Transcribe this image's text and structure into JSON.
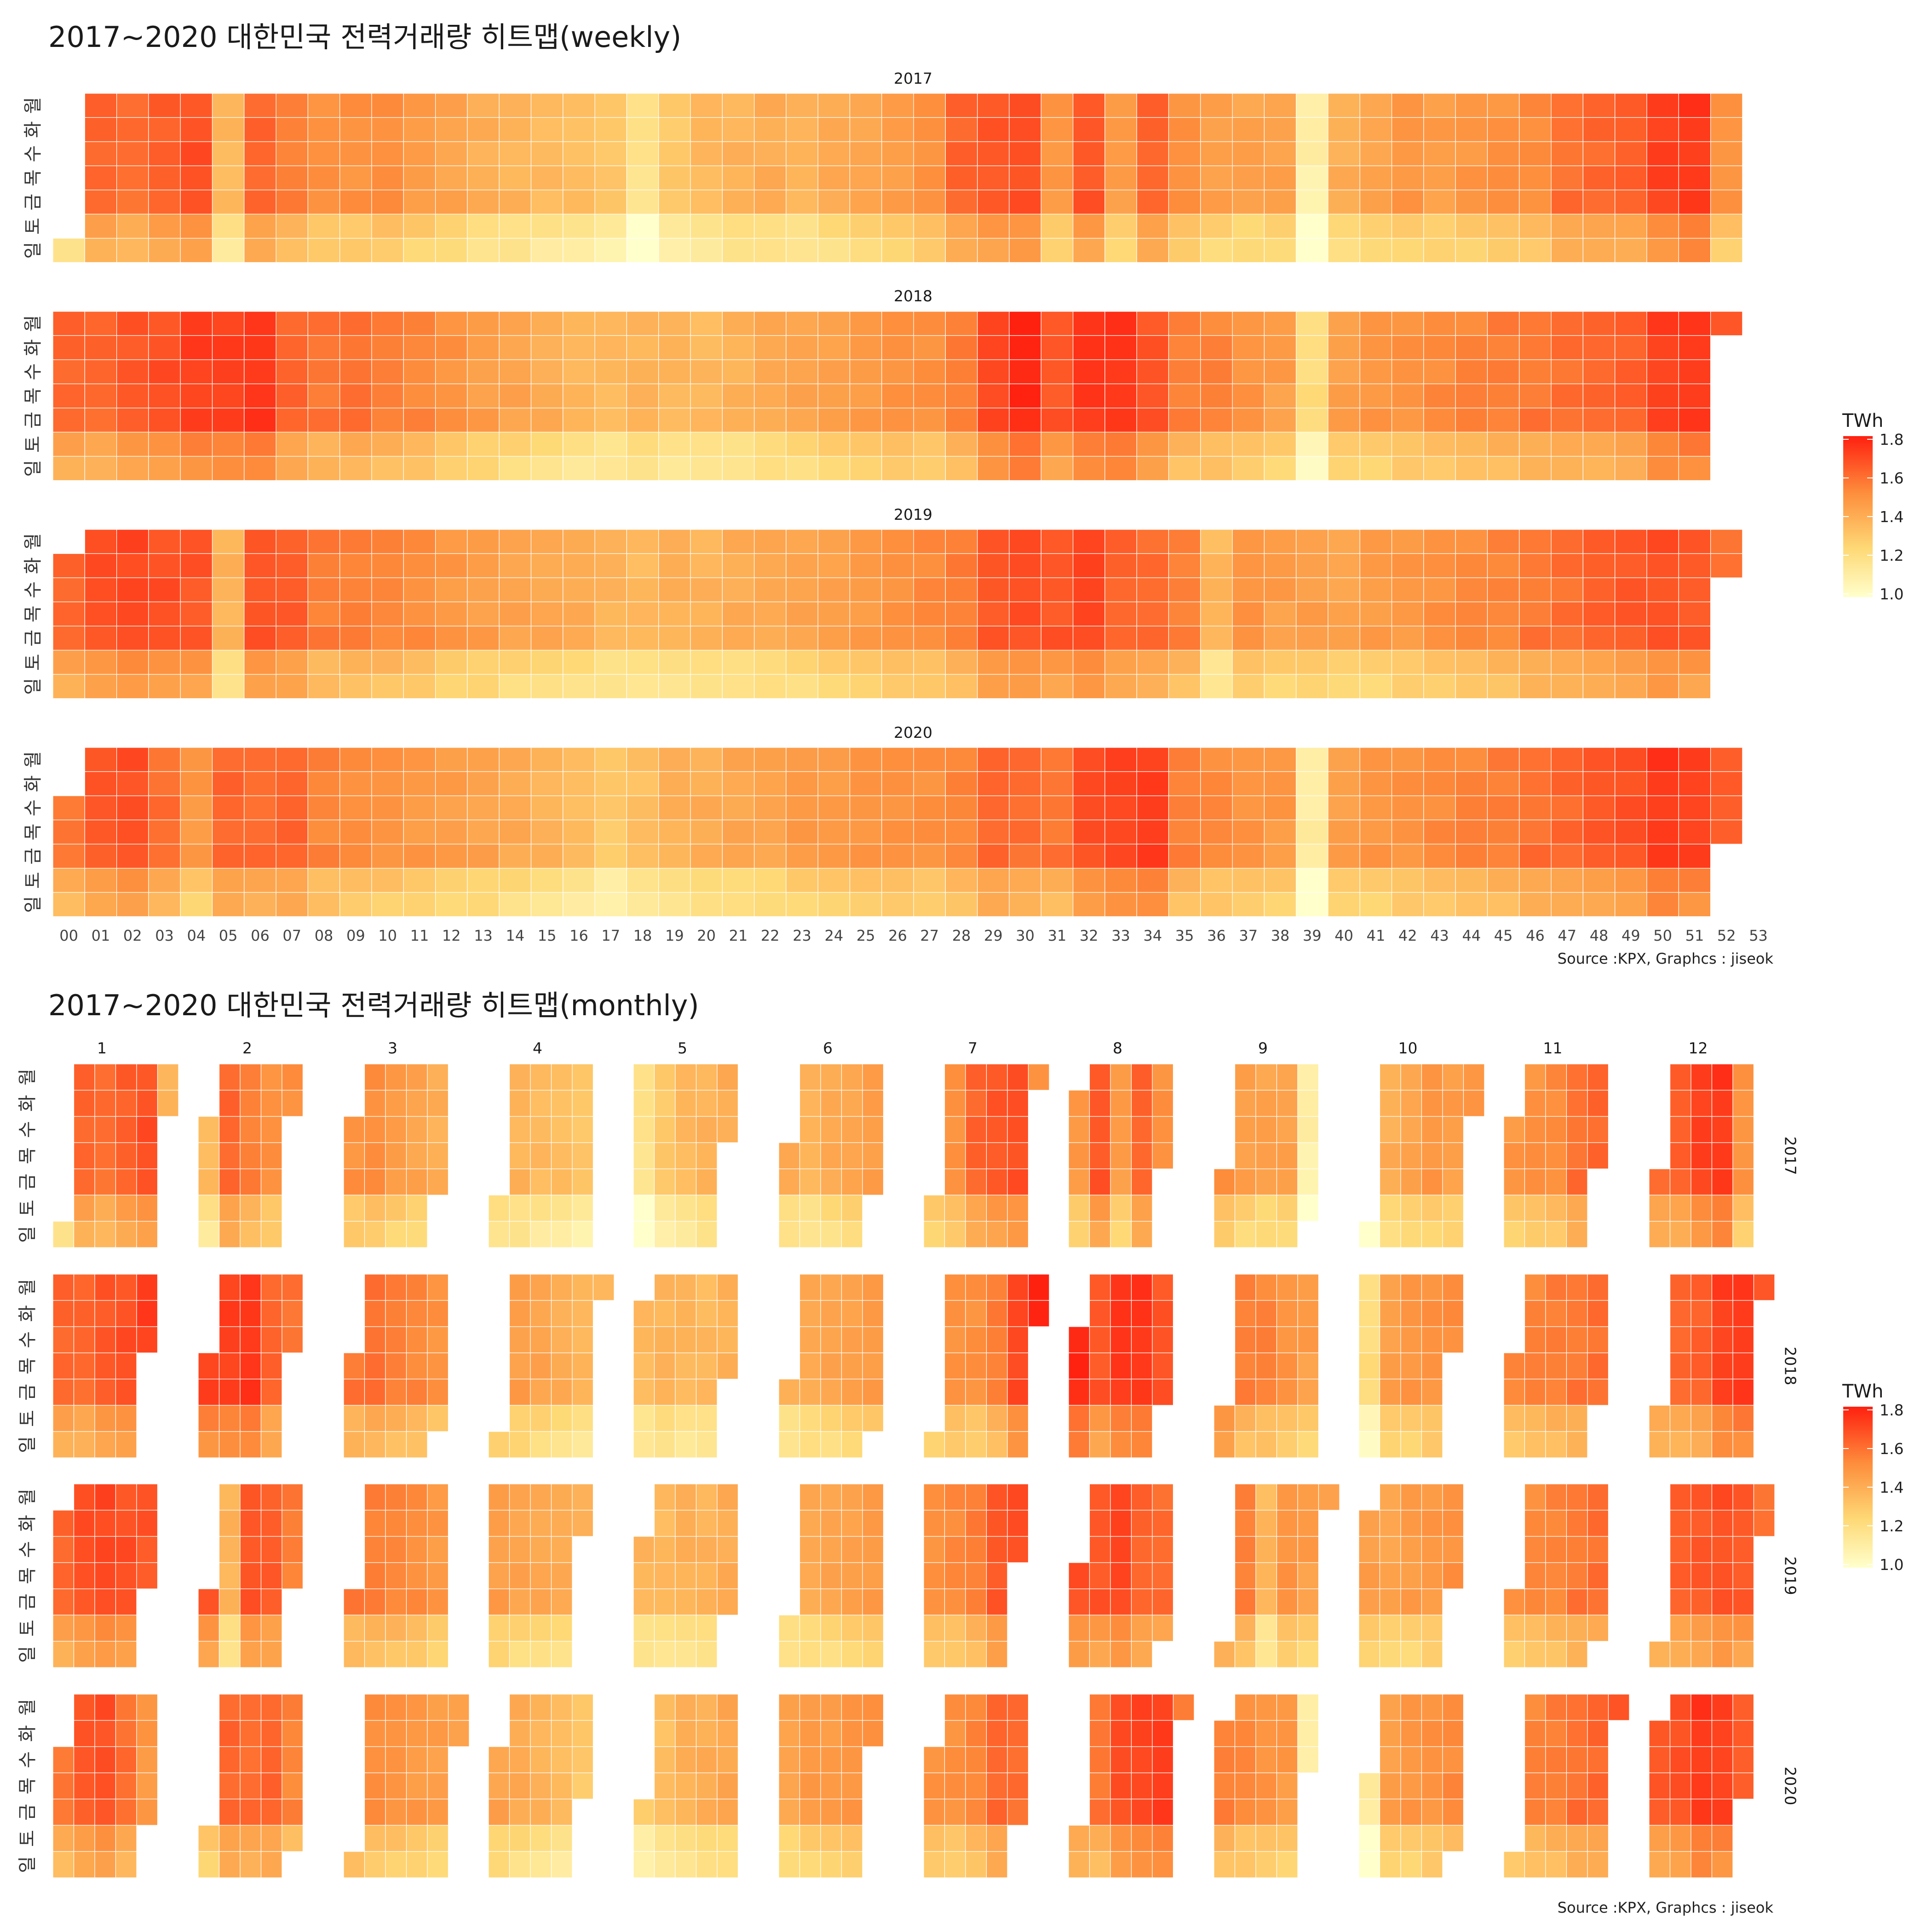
{
  "titles": {
    "weekly": "2017~2020 대한민국 전력거래량 히트맵(weekly)",
    "monthly": "2017~2020 대한민국 전력거래량 히트맵(monthly)"
  },
  "source": "Source :KPX, Graphcs : jiseok",
  "colors": {
    "low": "#ffffcc",
    "mid1": "#fed976",
    "mid2": "#fd8d3c",
    "high": "#ff2010",
    "grid": "#ffffff"
  },
  "chart_data": [
    {
      "type": "heatmap",
      "title": "2017~2020 대한민국 전력거래량 히트맵(weekly)",
      "facets": [
        "2017",
        "2018",
        "2019",
        "2020"
      ],
      "x_labels": [
        "00",
        "01",
        "02",
        "03",
        "04",
        "05",
        "06",
        "07",
        "08",
        "09",
        "10",
        "11",
        "12",
        "13",
        "14",
        "15",
        "16",
        "17",
        "18",
        "19",
        "20",
        "21",
        "22",
        "23",
        "24",
        "25",
        "26",
        "27",
        "28",
        "29",
        "30",
        "31",
        "32",
        "33",
        "34",
        "35",
        "36",
        "37",
        "38",
        "39",
        "40",
        "41",
        "42",
        "43",
        "44",
        "45",
        "46",
        "47",
        "48",
        "49",
        "50",
        "51",
        "52",
        "53"
      ],
      "y_labels": [
        "월",
        "화",
        "수",
        "목",
        "금",
        "토",
        "일"
      ],
      "legend": {
        "title": "TWh",
        "ticks": [
          "1.8",
          "1.6",
          "1.4",
          "1.2",
          "1.0"
        ],
        "range": [
          1.0,
          1.8
        ],
        "position": "right"
      },
      "value_range": [
        1.0,
        1.8
      ],
      "first_weekday_index": {
        "2017": 6,
        "2018": 0,
        "2019": 1,
        "2020": 2
      },
      "days_in_year": {
        "2017": 365,
        "2018": 365,
        "2019": 365,
        "2020": 366
      },
      "weekly_base_twh": {
        "2017": [
          1.4,
          1.62,
          1.6,
          1.64,
          1.68,
          1.36,
          1.62,
          1.55,
          1.5,
          1.5,
          1.52,
          1.47,
          1.44,
          1.4,
          1.38,
          1.36,
          1.34,
          1.32,
          1.18,
          1.3,
          1.35,
          1.38,
          1.4,
          1.38,
          1.42,
          1.44,
          1.47,
          1.5,
          1.62,
          1.66,
          1.68,
          1.48,
          1.66,
          1.46,
          1.62,
          1.5,
          1.46,
          1.44,
          1.45,
          1.1,
          1.4,
          1.44,
          1.48,
          1.46,
          1.48,
          1.5,
          1.52,
          1.6,
          1.62,
          1.64,
          1.72,
          1.74,
          1.5,
          1.5
        ],
        "2018": [
          1.62,
          1.62,
          1.66,
          1.68,
          1.72,
          1.72,
          1.74,
          1.62,
          1.58,
          1.6,
          1.56,
          1.54,
          1.5,
          1.46,
          1.44,
          1.4,
          1.38,
          1.36,
          1.38,
          1.36,
          1.36,
          1.38,
          1.42,
          1.44,
          1.46,
          1.48,
          1.5,
          1.5,
          1.56,
          1.7,
          1.78,
          1.66,
          1.74,
          1.74,
          1.66,
          1.56,
          1.54,
          1.5,
          1.46,
          1.22,
          1.46,
          1.48,
          1.5,
          1.52,
          1.54,
          1.56,
          1.58,
          1.6,
          1.62,
          1.64,
          1.72,
          1.74,
          1.68,
          1.62
        ],
        "2019": [
          1.62,
          1.68,
          1.7,
          1.68,
          1.66,
          1.38,
          1.66,
          1.64,
          1.56,
          1.56,
          1.54,
          1.52,
          1.48,
          1.46,
          1.44,
          1.42,
          1.42,
          1.38,
          1.36,
          1.38,
          1.38,
          1.4,
          1.42,
          1.44,
          1.46,
          1.48,
          1.5,
          1.52,
          1.56,
          1.66,
          1.68,
          1.66,
          1.7,
          1.62,
          1.6,
          1.56,
          1.36,
          1.5,
          1.46,
          1.46,
          1.44,
          1.46,
          1.48,
          1.5,
          1.52,
          1.54,
          1.58,
          1.6,
          1.64,
          1.66,
          1.68,
          1.66,
          1.6,
          1.6
        ],
        "2020": [
          1.58,
          1.66,
          1.68,
          1.6,
          1.48,
          1.62,
          1.6,
          1.62,
          1.54,
          1.52,
          1.5,
          1.48,
          1.46,
          1.44,
          1.42,
          1.38,
          1.36,
          1.3,
          1.34,
          1.38,
          1.4,
          1.42,
          1.44,
          1.48,
          1.48,
          1.5,
          1.5,
          1.5,
          1.54,
          1.62,
          1.6,
          1.58,
          1.68,
          1.7,
          1.72,
          1.56,
          1.52,
          1.5,
          1.48,
          1.12,
          1.46,
          1.48,
          1.5,
          1.52,
          1.54,
          1.56,
          1.6,
          1.62,
          1.66,
          1.68,
          1.74,
          1.72,
          1.66,
          1.6
        ]
      }
    },
    {
      "type": "heatmap",
      "title": "2017~2020 대한민국 전력거래량 히트맵(monthly)",
      "column_facets": [
        "1",
        "2",
        "3",
        "4",
        "5",
        "6",
        "7",
        "8",
        "9",
        "10",
        "11",
        "12"
      ],
      "row_facets": [
        "2017",
        "2018",
        "2019",
        "2020"
      ],
      "y_labels": [
        "월",
        "화",
        "수",
        "목",
        "금",
        "토",
        "일"
      ],
      "legend": {
        "title": "TWh",
        "ticks": [
          "1.8",
          "1.6",
          "1.4",
          "1.2",
          "1.0"
        ],
        "range": [
          1.0,
          1.8
        ],
        "position": "right"
      }
    }
  ]
}
